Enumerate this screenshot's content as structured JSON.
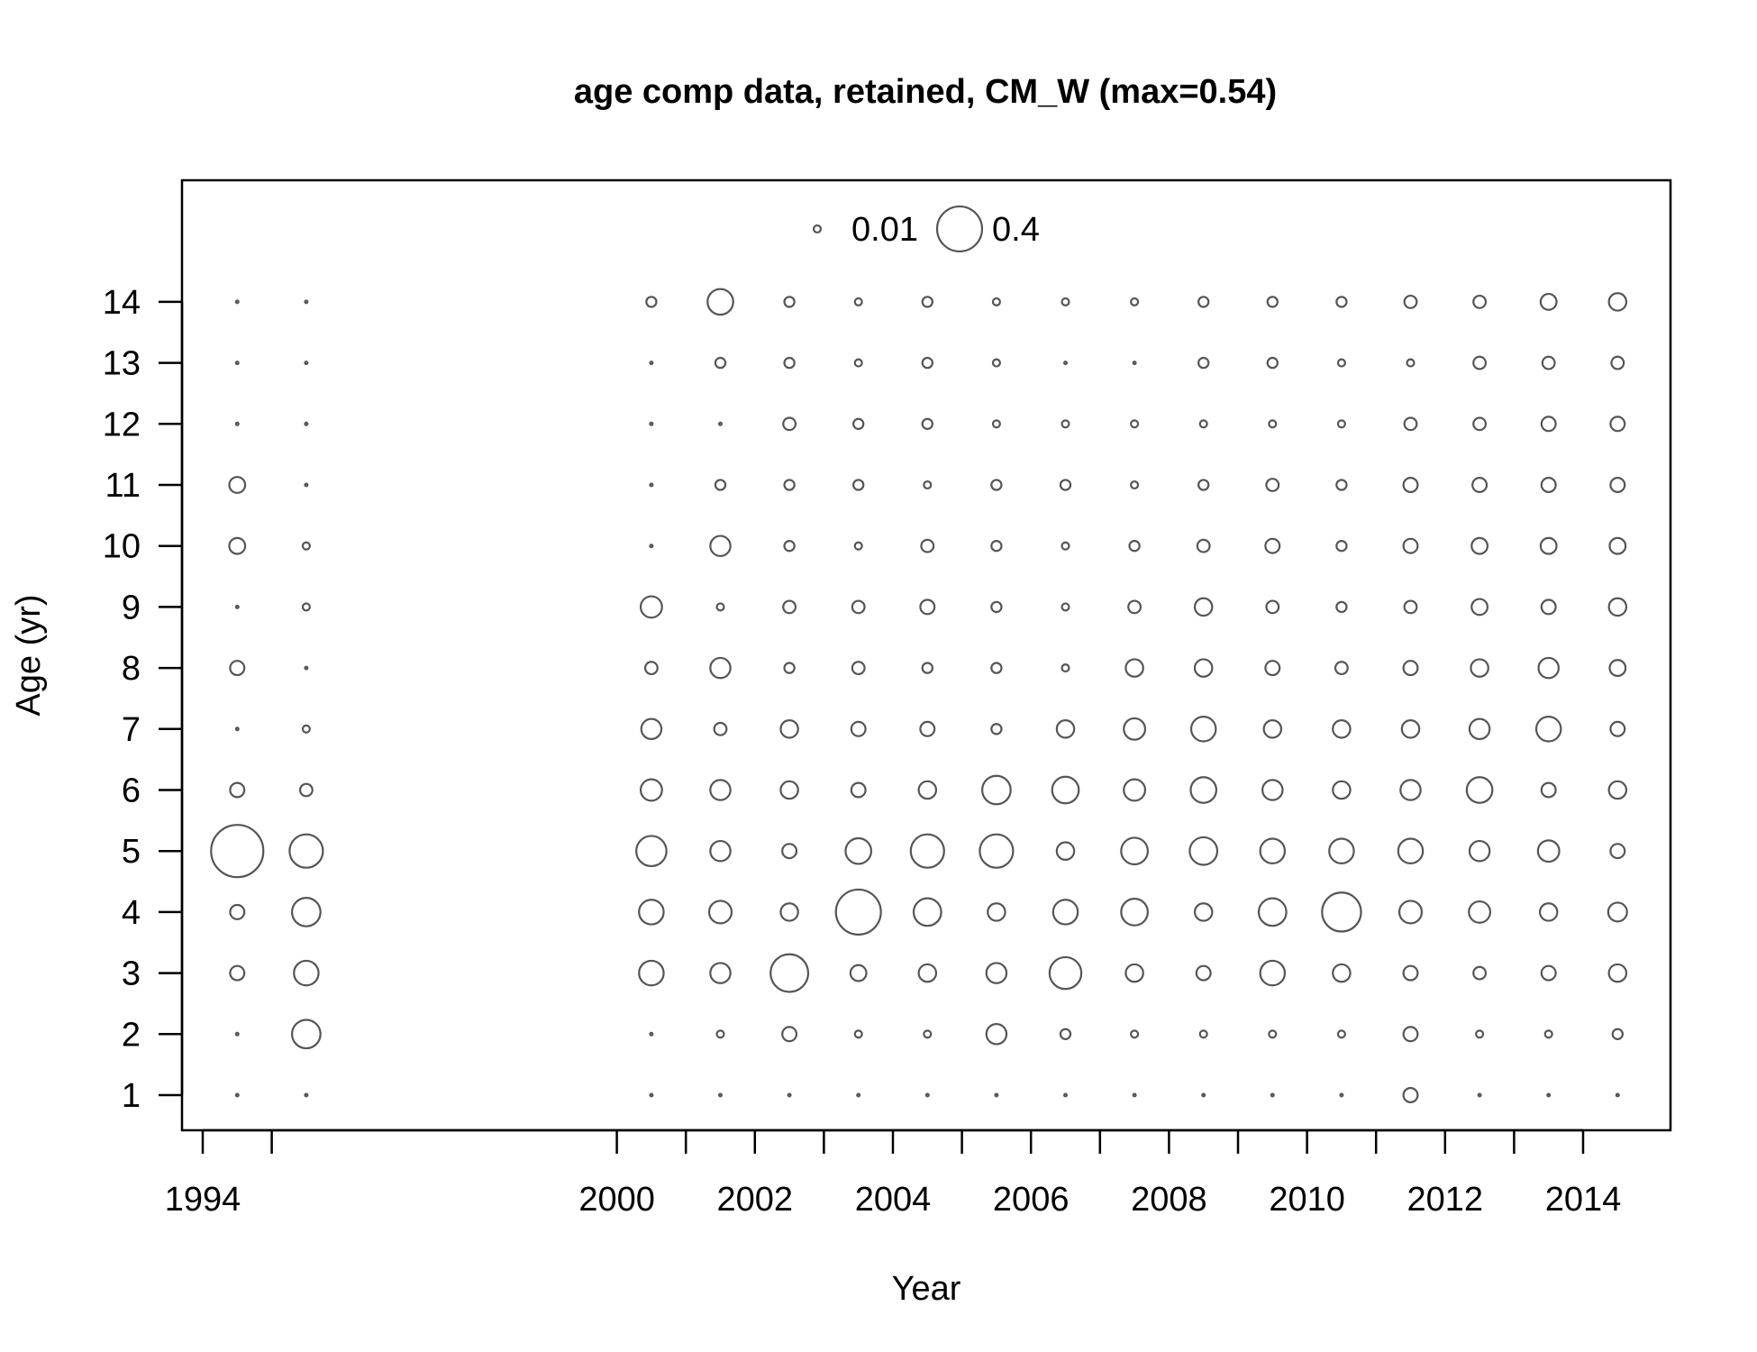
{
  "chart_data": {
    "type": "bubble",
    "title": "age comp data, retained, CM_W (max=0.54)",
    "xlabel": "Year",
    "ylabel": "Age (yr)",
    "x_ticks": [
      1994,
      1995,
      2000,
      2001,
      2002,
      2003,
      2004,
      2005,
      2006,
      2007,
      2008,
      2009,
      2010,
      2011,
      2012,
      2013,
      2014
    ],
    "x_tick_labels": [
      "1994",
      "",
      "2000",
      "",
      "2002",
      "",
      "2004",
      "",
      "2006",
      "",
      "2008",
      "",
      "2010",
      "",
      "2012",
      "",
      "2014"
    ],
    "y_ticks": [
      1,
      2,
      3,
      4,
      5,
      6,
      7,
      8,
      9,
      10,
      11,
      12,
      13,
      14
    ],
    "y_tick_labels": [
      "1",
      "2",
      "3",
      "4",
      "5",
      "6",
      "7",
      "8",
      "9",
      "10",
      "11",
      "12",
      "13",
      "14"
    ],
    "legend": [
      {
        "label": "0.01",
        "value": 0.01
      },
      {
        "label": "0.4",
        "value": 0.4
      }
    ],
    "legend_position": "top-center",
    "max_value": 0.54,
    "years": [
      1994.5,
      1995.5,
      2000.5,
      2001.5,
      2002.5,
      2003.5,
      2004.5,
      2005.5,
      2006.5,
      2007.5,
      2008.5,
      2009.5,
      2010.5,
      2011.5,
      2012.5,
      2013.5,
      2014.5
    ],
    "ages": [
      1,
      2,
      3,
      4,
      5,
      6,
      7,
      8,
      9,
      10,
      11,
      12,
      13,
      14
    ],
    "values": [
      [
        0.001,
        0.001,
        0.04,
        0.04,
        0.54,
        0.04,
        0.001,
        0.04,
        0.001,
        0.05,
        0.05,
        0.001,
        0.001,
        0.001
      ],
      [
        0.001,
        0.16,
        0.12,
        0.16,
        0.22,
        0.03,
        0.01,
        0.001,
        0.01,
        0.01,
        0.001,
        0.001,
        0.001,
        0.001
      ],
      [
        0.001,
        0.001,
        0.12,
        0.12,
        0.18,
        0.09,
        0.08,
        0.03,
        0.09,
        0.001,
        0.001,
        0.001,
        0.001,
        0.02
      ],
      [
        0.001,
        0.01,
        0.08,
        0.1,
        0.08,
        0.08,
        0.03,
        0.08,
        0.01,
        0.08,
        0.02,
        0.001,
        0.02,
        0.13
      ],
      [
        0.001,
        0.04,
        0.28,
        0.06,
        0.04,
        0.06,
        0.06,
        0.02,
        0.03,
        0.02,
        0.02,
        0.03,
        0.02,
        0.02
      ],
      [
        0.001,
        0.01,
        0.05,
        0.4,
        0.13,
        0.04,
        0.04,
        0.03,
        0.03,
        0.01,
        0.02,
        0.02,
        0.01,
        0.01
      ],
      [
        0.001,
        0.01,
        0.06,
        0.15,
        0.22,
        0.06,
        0.04,
        0.02,
        0.04,
        0.03,
        0.01,
        0.02,
        0.02,
        0.02
      ],
      [
        0.001,
        0.08,
        0.08,
        0.06,
        0.22,
        0.16,
        0.02,
        0.02,
        0.02,
        0.02,
        0.02,
        0.01,
        0.01,
        0.01
      ],
      [
        0.001,
        0.02,
        0.2,
        0.12,
        0.06,
        0.14,
        0.06,
        0.01,
        0.01,
        0.01,
        0.02,
        0.01,
        0.001,
        0.01
      ],
      [
        0.001,
        0.01,
        0.06,
        0.14,
        0.14,
        0.09,
        0.09,
        0.06,
        0.03,
        0.02,
        0.01,
        0.01,
        0.001,
        0.01
      ],
      [
        0.001,
        0.01,
        0.04,
        0.06,
        0.15,
        0.13,
        0.12,
        0.06,
        0.06,
        0.03,
        0.02,
        0.01,
        0.02,
        0.02
      ],
      [
        0.001,
        0.01,
        0.12,
        0.15,
        0.12,
        0.08,
        0.06,
        0.04,
        0.03,
        0.04,
        0.03,
        0.01,
        0.02,
        0.02
      ],
      [
        0.001,
        0.01,
        0.06,
        0.3,
        0.12,
        0.06,
        0.06,
        0.03,
        0.02,
        0.02,
        0.02,
        0.01,
        0.01,
        0.02
      ],
      [
        0.04,
        0.04,
        0.04,
        0.1,
        0.12,
        0.08,
        0.06,
        0.04,
        0.03,
        0.04,
        0.04,
        0.03,
        0.01,
        0.03
      ],
      [
        0.001,
        0.01,
        0.03,
        0.09,
        0.08,
        0.13,
        0.08,
        0.06,
        0.05,
        0.05,
        0.04,
        0.03,
        0.03,
        0.03
      ],
      [
        0.001,
        0.01,
        0.04,
        0.06,
        0.09,
        0.04,
        0.12,
        0.08,
        0.04,
        0.05,
        0.04,
        0.04,
        0.03,
        0.05
      ],
      [
        0.001,
        0.02,
        0.06,
        0.07,
        0.04,
        0.06,
        0.04,
        0.05,
        0.06,
        0.05,
        0.04,
        0.04,
        0.03,
        0.06
      ]
    ],
    "grid": false
  }
}
